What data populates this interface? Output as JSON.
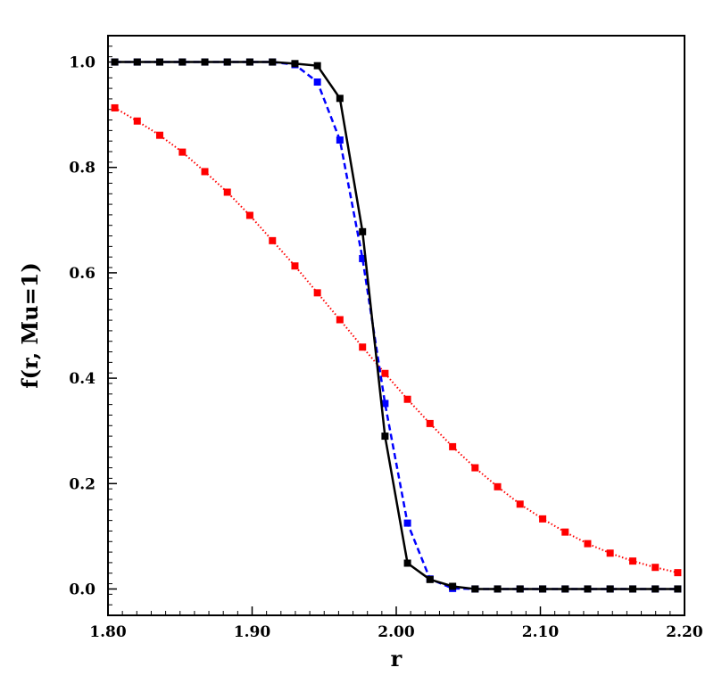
{
  "chart_data": {
    "type": "line",
    "title": "",
    "xlabel": "r",
    "ylabel": "f(r, Mu=1)",
    "xlim": [
      1.8,
      2.2
    ],
    "ylim": [
      -0.05,
      1.05
    ],
    "x_ticks": [
      1.8,
      1.9,
      2.0,
      2.1,
      2.2
    ],
    "x_tick_labels": [
      "1.80",
      "1.90",
      "2.00",
      "2.10",
      "2.20"
    ],
    "y_ticks": [
      0.0,
      0.2,
      0.4,
      0.6,
      0.8,
      1.0
    ],
    "y_tick_labels": [
      "0.0",
      "0.2",
      "0.4",
      "0.6",
      "0.8",
      "1.0"
    ],
    "grid": false,
    "legend": "none",
    "x": [
      1.8047,
      1.8203,
      1.8359,
      1.8516,
      1.8672,
      1.8828,
      1.8984,
      1.9141,
      1.9297,
      1.9453,
      1.9609,
      1.9766,
      1.9922,
      2.0078,
      2.0234,
      2.0391,
      2.0547,
      2.0703,
      2.0859,
      2.1016,
      2.1172,
      2.1328,
      2.1484,
      2.1641,
      2.1797,
      2.1953
    ],
    "series": [
      {
        "color": "#ff0000",
        "line": "dotted",
        "marker": "square",
        "values": [
          0.913,
          0.888,
          0.861,
          0.829,
          0.792,
          0.753,
          0.709,
          0.661,
          0.613,
          0.562,
          0.511,
          0.459,
          0.409,
          0.36,
          0.314,
          0.27,
          0.23,
          0.194,
          0.161,
          0.133,
          0.108,
          0.086,
          0.068,
          0.053,
          0.041,
          0.031
        ]
      },
      {
        "color": "#0000ff",
        "line": "dashed",
        "marker": "square",
        "values": [
          1.0,
          1.0,
          1.0,
          1.0,
          1.0,
          1.0,
          1.0,
          1.0,
          0.995,
          0.962,
          0.852,
          0.627,
          0.352,
          0.125,
          0.019,
          0.001,
          0.0,
          0.0,
          0.0,
          0.0,
          0.0,
          0.0,
          0.0,
          0.0,
          0.0,
          0.0
        ]
      },
      {
        "color": "#000000",
        "line": "solid",
        "marker": "square",
        "values": [
          1.0,
          1.0,
          1.0,
          1.0,
          1.0,
          1.0,
          1.0,
          1.0,
          0.997,
          0.993,
          0.931,
          0.678,
          0.29,
          0.049,
          0.018,
          0.005,
          0.0,
          0.0,
          0.0,
          0.0,
          0.0,
          0.0,
          0.0,
          0.0,
          0.0,
          0.0
        ]
      }
    ]
  }
}
